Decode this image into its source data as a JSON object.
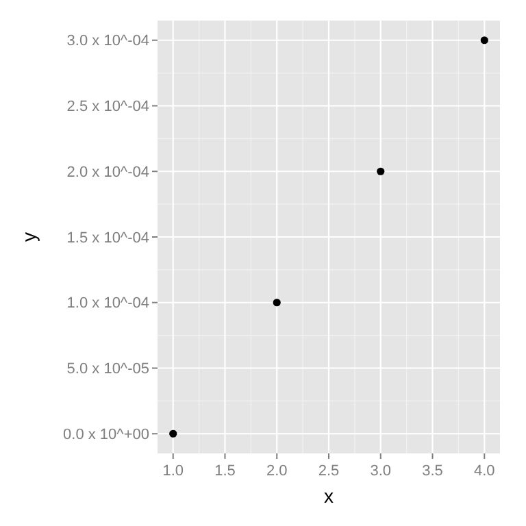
{
  "chart_data": {
    "type": "scatter",
    "xlabel": "x",
    "ylabel": "y",
    "x": [
      1,
      2,
      3,
      4
    ],
    "series": [
      {
        "color": "#000000",
        "values": [
          0,
          0.0001,
          0.0002,
          0.0003
        ]
      }
    ],
    "xlim": [
      0.85,
      4.15
    ],
    "ylim": [
      -1.5e-05,
      0.000315
    ],
    "xticks": [
      {
        "value": 1,
        "label": "1.0"
      },
      {
        "value": 1.5,
        "label": "1.5"
      },
      {
        "value": 2,
        "label": "2.0"
      },
      {
        "value": 2.5,
        "label": "2.5"
      },
      {
        "value": 3,
        "label": "3.0"
      },
      {
        "value": 3.5,
        "label": "3.5"
      },
      {
        "value": 4,
        "label": "4.0"
      }
    ],
    "yticks": [
      {
        "value": 0,
        "label": "0.0 x 10^+00"
      },
      {
        "value": 5e-05,
        "label": "5.0 x 10^-05"
      },
      {
        "value": 0.0001,
        "label": "1.0 x 10^-04"
      },
      {
        "value": 0.00015,
        "label": "1.5 x 10^-04"
      },
      {
        "value": 0.0002,
        "label": "2.0 x 10^-04"
      },
      {
        "value": 0.00025,
        "label": "2.5 x 10^-04"
      },
      {
        "value": 0.0003,
        "label": "3.0 x 10^-04"
      }
    ],
    "grid": true,
    "marker": "circle"
  }
}
